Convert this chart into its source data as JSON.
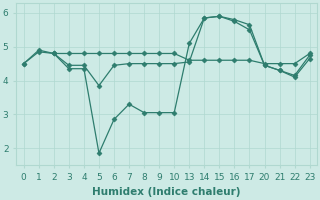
{
  "series": [
    {
      "xi": [
        0,
        1,
        2,
        3,
        4,
        5,
        6,
        7,
        8,
        9,
        10,
        11,
        12,
        13,
        14,
        15,
        16,
        17,
        18,
        19
      ],
      "y": [
        4.5,
        4.9,
        4.8,
        4.35,
        4.35,
        1.85,
        2.85,
        3.3,
        3.05,
        3.05,
        3.05,
        5.1,
        5.85,
        5.9,
        5.8,
        5.65,
        4.45,
        4.3,
        4.15,
        4.75
      ]
    },
    {
      "xi": [
        0,
        1,
        2,
        3,
        4,
        5,
        6,
        7,
        8,
        9,
        10,
        11,
        12,
        13,
        14,
        15,
        16,
        17,
        18,
        19
      ],
      "y": [
        4.5,
        4.85,
        4.8,
        4.45,
        4.45,
        3.85,
        4.45,
        4.5,
        4.5,
        4.5,
        4.5,
        4.55,
        5.85,
        5.9,
        5.75,
        5.5,
        4.45,
        4.3,
        4.1,
        4.65
      ]
    },
    {
      "xi": [
        2,
        3,
        4,
        5,
        6,
        7,
        8,
        9,
        10,
        11,
        12,
        13,
        14,
        15,
        16,
        17,
        18,
        19
      ],
      "y": [
        4.8,
        4.8,
        4.8,
        4.8,
        4.8,
        4.8,
        4.8,
        4.8,
        4.8,
        4.6,
        4.6,
        4.6,
        4.6,
        4.6,
        4.5,
        4.5,
        4.5,
        4.8
      ]
    }
  ],
  "xtick_indices": [
    0,
    1,
    2,
    3,
    4,
    5,
    6,
    7,
    8,
    9,
    10,
    11,
    12,
    13,
    14,
    15,
    16,
    17,
    18,
    19
  ],
  "xtick_labels": [
    "0",
    "1",
    "2",
    "3",
    "4",
    "5",
    "6",
    "7",
    "8",
    "9",
    "10",
    "13",
    "14",
    "15",
    "16",
    "17",
    "20",
    "21",
    "22",
    "23"
  ],
  "color": "#2e7d6e",
  "background_color": "#cdeae5",
  "grid_color": "#b0d8d0",
  "xlabel": "Humidex (Indice chaleur)",
  "ylim": [
    1.5,
    6.3
  ],
  "xlim": [
    -0.5,
    19.5
  ],
  "yticks": [
    2,
    3,
    4,
    5,
    6
  ],
  "marker": "D",
  "markersize": 2.5,
  "linewidth": 0.9,
  "xlabel_fontsize": 7.5,
  "tick_fontsize": 6.5
}
